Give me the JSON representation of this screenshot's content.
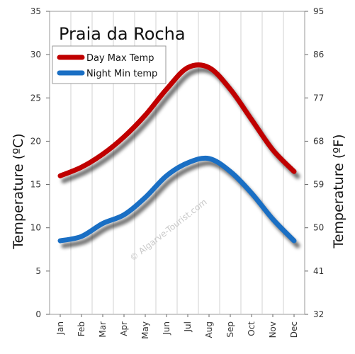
{
  "chart_data": {
    "type": "line",
    "title": "Praia da Rocha",
    "categories": [
      "Jan",
      "Feb",
      "Mar",
      "Apr",
      "May",
      "Jun",
      "Jul",
      "Aug",
      "Sep",
      "Oct",
      "Nov",
      "Dec"
    ],
    "series": [
      {
        "name": "Day Max Temp",
        "color": "#c00000",
        "values": [
          16,
          17,
          18.5,
          20.5,
          23,
          26,
          28.5,
          28.5,
          26,
          22.5,
          19,
          16.5
        ]
      },
      {
        "name": "Night Min temp",
        "color": "#1a6fc4",
        "values": [
          8.5,
          9,
          10.5,
          11.5,
          13.5,
          16,
          17.5,
          18,
          16.5,
          14,
          11,
          8.5
        ]
      }
    ],
    "ylabel": "Temperature  (ºC)",
    "ylabel_right": "Temperature  (ºF)",
    "ylim": [
      0,
      35
    ],
    "yticks": [
      0,
      5,
      10,
      15,
      20,
      25,
      30,
      35
    ],
    "yticks_right": [
      "32",
      "41",
      "50",
      "59",
      "68",
      "77",
      "86",
      "95"
    ],
    "grid": "vertical",
    "legend_position": "top-left",
    "watermark": "© Algarve-Tourist.com"
  }
}
